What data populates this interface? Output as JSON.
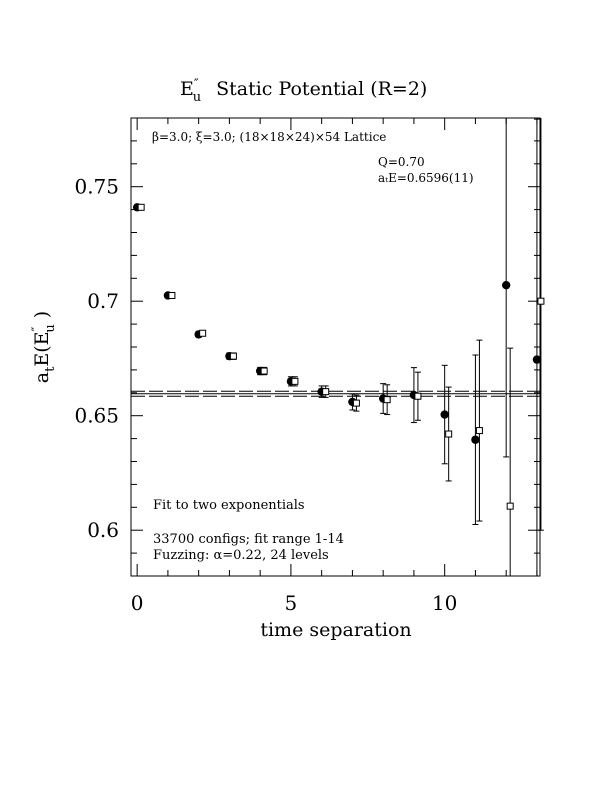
{
  "chart_data": {
    "type": "scatter",
    "title": "E″u  Static Potential (R=2)",
    "title_parts": {
      "main": "E",
      "sup": "″",
      "sub": "u",
      "rest": "Static Potential (R=2)"
    },
    "xlabel": "time separation",
    "ylabel_parts": {
      "a": "a",
      "t": "t",
      "E": "E(E",
      "sup": "″",
      "sub": "u",
      "close": " )"
    },
    "xlim": [
      -0.2,
      13.1
    ],
    "ylim": [
      0.58,
      0.78
    ],
    "x_ticks": [
      0,
      5,
      10
    ],
    "y_ticks": [
      0.6,
      0.65,
      0.7,
      0.75
    ],
    "x_tick_labels": [
      "0",
      "5",
      "10"
    ],
    "y_tick_labels": [
      "0.6",
      "0.65",
      "0.7",
      "0.75"
    ],
    "annotations": {
      "lattice": "β=3.0; ξ=3.0; (18×18×24)×54 Lattice",
      "q": "Q=0.70",
      "ate": "aₜE=0.6596(11)",
      "fit": "Fit to two exponentials",
      "configs": "33700 configs; fit range 1-14",
      "fuzzing": "Fuzzing: α=0.22, 24 levels"
    },
    "fit": {
      "value": 0.6596,
      "err": 0.0011
    },
    "series": [
      {
        "name": "filled circles",
        "marker": "filled-circle",
        "x": [
          0,
          1,
          2,
          3,
          4,
          5,
          6,
          7,
          8,
          9,
          10,
          11,
          12,
          13
        ],
        "y": [
          0.741,
          0.7025,
          0.6855,
          0.676,
          0.6695,
          0.665,
          0.6605,
          0.656,
          0.6575,
          0.659,
          0.6505,
          0.6395,
          0.707,
          0.6745
        ],
        "err": [
          0.001,
          0.001,
          0.0012,
          0.0014,
          0.0016,
          0.002,
          0.0025,
          0.0035,
          0.0065,
          0.012,
          0.0215,
          0.037,
          0.075,
          0.105
        ]
      },
      {
        "name": "open squares",
        "marker": "open-square",
        "x": [
          0,
          1,
          2,
          3,
          4,
          5,
          6,
          7,
          8,
          9,
          10,
          11,
          12,
          13
        ],
        "y": [
          0.741,
          0.7025,
          0.686,
          0.676,
          0.6695,
          0.665,
          0.6605,
          0.6555,
          0.657,
          0.6585,
          0.642,
          0.6435,
          0.6105,
          0.7
        ],
        "err": [
          0.001,
          0.001,
          0.0012,
          0.0014,
          0.0016,
          0.002,
          0.0025,
          0.0035,
          0.0065,
          0.0105,
          0.0205,
          0.0395,
          0.069,
          0.1
        ]
      }
    ]
  }
}
